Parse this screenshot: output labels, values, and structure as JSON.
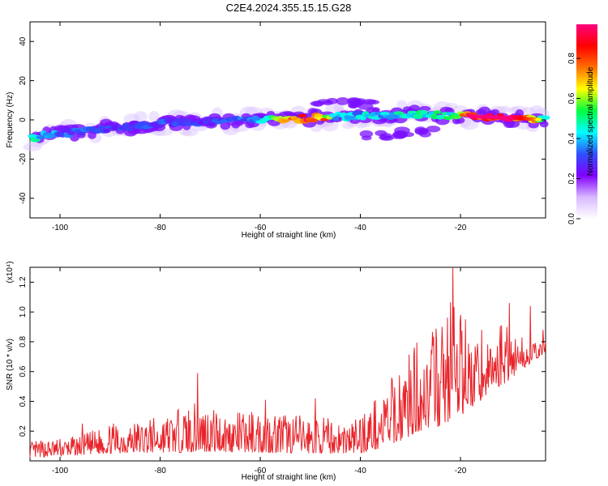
{
  "title": "C2E4.2024.355.15.15.G28",
  "chart_data": [
    {
      "type": "heatmap",
      "xlabel": "Height of straight line (km)",
      "ylabel": "Frequency (Hz)",
      "xlim": [
        -106,
        -3
      ],
      "ylim": [
        -50,
        50
      ],
      "xticks": [
        -100,
        -80,
        -60,
        -40,
        -20
      ],
      "yticks": [
        -40,
        -20,
        0,
        20,
        40
      ],
      "grid": false,
      "colorbar": {
        "label": "Normalized spectral amplitude",
        "range": [
          0,
          0.97
        ],
        "ticks": [
          0.0,
          0.2,
          0.4,
          0.6,
          0.8
        ],
        "colors": [
          "#ffffff",
          "#d8b8ff",
          "#8000ff",
          "#3050ff",
          "#00ffff",
          "#00ff40",
          "#ffff00",
          "#ff7000",
          "#ff0000",
          "#ff0080"
        ]
      },
      "ridge": {
        "center_freq": [
          [
            -106,
            -9
          ],
          [
            -100,
            -7
          ],
          [
            -90,
            -4
          ],
          [
            -80,
            -2
          ],
          [
            -70,
            -1
          ],
          [
            -60,
            0
          ],
          [
            -50,
            1
          ],
          [
            -40,
            2
          ],
          [
            -30,
            3
          ],
          [
            -20,
            2
          ],
          [
            -10,
            1
          ],
          [
            -3,
            0
          ]
        ],
        "amplitude": [
          [
            -106,
            0.5
          ],
          [
            -100,
            0.35
          ],
          [
            -90,
            0.3
          ],
          [
            -80,
            0.32
          ],
          [
            -70,
            0.3
          ],
          [
            -60,
            0.4
          ],
          [
            -52,
            0.85
          ],
          [
            -48,
            0.9
          ],
          [
            -45,
            0.4
          ],
          [
            -35,
            0.45
          ],
          [
            -25,
            0.5
          ],
          [
            -20,
            0.55
          ],
          [
            -18,
            0.97
          ],
          [
            -10,
            0.97
          ],
          [
            -5,
            0.75
          ],
          [
            -3,
            0.4
          ]
        ],
        "secondary": [
          [
            -45,
            9
          ],
          [
            -40,
            8
          ],
          [
            -35,
            -8
          ],
          [
            -28,
            -6
          ]
        ]
      }
    },
    {
      "type": "line",
      "xlabel": "Height of straight line (km)",
      "ylabel": "SNR (10 * v/v)",
      "yscale_label": "(x10⁴)",
      "xlim": [
        -106,
        -3
      ],
      "ylim": [
        0,
        1.3
      ],
      "xticks": [
        -100,
        -80,
        -60,
        -40,
        -20
      ],
      "yticks": [
        0.2,
        0.4,
        0.6,
        0.8,
        1.0,
        1.2
      ],
      "grid": false,
      "series": [
        {
          "color": "#e8242a",
          "envelope": [
            [
              -106,
              0.13
            ],
            [
              -96,
              0.17
            ],
            [
              -90,
              0.25
            ],
            [
              -80,
              0.3
            ],
            [
              -72,
              0.4
            ],
            [
              -66,
              0.32
            ],
            [
              -60,
              0.35
            ],
            [
              -50,
              0.3
            ],
            [
              -42,
              0.27
            ],
            [
              -36,
              0.45
            ],
            [
              -32,
              0.65
            ],
            [
              -28,
              0.85
            ],
            [
              -24,
              0.92
            ],
            [
              -22,
              1.15
            ],
            [
              -20,
              0.95
            ],
            [
              -18,
              0.8
            ],
            [
              -15,
              0.78
            ],
            [
              -12,
              0.95
            ],
            [
              -9,
              0.9
            ],
            [
              -6,
              0.78
            ],
            [
              -3,
              0.82
            ]
          ],
          "floor": [
            [
              -106,
              0.02
            ],
            [
              -90,
              0.05
            ],
            [
              -70,
              0.06
            ],
            [
              -50,
              0.05
            ],
            [
              -40,
              0.05
            ],
            [
              -34,
              0.1
            ],
            [
              -28,
              0.2
            ],
            [
              -22,
              0.25
            ],
            [
              -16,
              0.4
            ],
            [
              -10,
              0.55
            ],
            [
              -5,
              0.68
            ],
            [
              -3,
              0.72
            ]
          ],
          "peaks": [
            [
              -95.5,
              0.25
            ],
            [
              -72.5,
              0.59
            ],
            [
              -59,
              0.41
            ],
            [
              -49,
              0.42
            ],
            [
              -21.5,
              1.3
            ],
            [
              -20,
              0.98
            ],
            [
              -19,
              0.95
            ],
            [
              -15.8,
              0.88
            ],
            [
              -10.2,
              1.06
            ],
            [
              -6,
              1.04
            ],
            [
              -3.5,
              0.88
            ]
          ]
        }
      ]
    }
  ]
}
